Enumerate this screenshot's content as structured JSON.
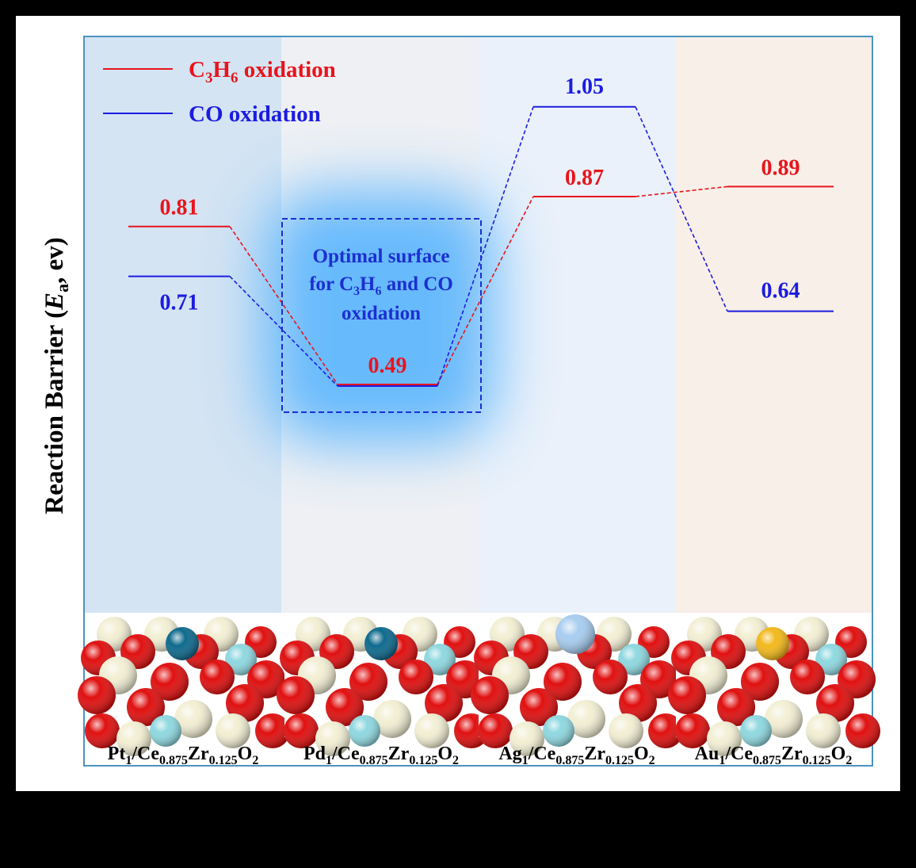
{
  "chart_data": {
    "type": "line",
    "ylabel_main": "Reaction Barrier (",
    "ylabel_sym": "E",
    "ylabel_sub": "a",
    "ylabel_tail": ", ev)",
    "categories": [
      {
        "base": "Pt",
        "metal_sub": "1",
        "rest": "/Ce",
        "s1": "0.875",
        "mid": "Zr",
        "s2": "0.125",
        "end": "O",
        "s3": "2"
      },
      {
        "base": "Pd",
        "metal_sub": "1",
        "rest": "/Ce",
        "s1": "0.875",
        "mid": "Zr",
        "s2": "0.125",
        "end": "O",
        "s3": "2"
      },
      {
        "base": "Ag",
        "metal_sub": "1",
        "rest": "/Ce",
        "s1": "0.875",
        "mid": "Zr",
        "s2": "0.125",
        "end": "O",
        "s3": "2"
      },
      {
        "base": "Au",
        "metal_sub": "1",
        "rest": "/Ce",
        "s1": "0.875",
        "mid": "Zr",
        "s2": "0.125",
        "end": "O",
        "s3": "2"
      }
    ],
    "series": [
      {
        "key": "c3h6",
        "color": "#e8141c",
        "legend_a": "C",
        "legend_s1": "3",
        "legend_b": "H",
        "legend_s2": "6",
        "legend_c": " oxidation",
        "values": [
          0.81,
          0.49,
          0.87,
          0.89
        ],
        "labels": [
          "0.81",
          "0.49",
          "0.87",
          "0.89"
        ]
      },
      {
        "key": "co",
        "color": "#1c1ce0",
        "legend_a": "CO oxidation",
        "values": [
          0.71,
          0.49,
          1.05,
          0.64
        ],
        "labels": [
          "0.71",
          "",
          "1.05",
          "0.64"
        ]
      }
    ],
    "ylim": [
      0.3,
      1.13
    ],
    "annotation": {
      "line1": "Optimal surface",
      "line2_a": "for C",
      "line2_s1": "3",
      "line2_b": "H",
      "line2_s2": "6",
      "line2_c": " and CO",
      "line3": "oxidation",
      "color": "#1c2fd0"
    },
    "panel_colors": [
      "#d4e4f3",
      "#eef0f4",
      "#eaf1fa",
      "#f8efe8"
    ],
    "atom_colors": {
      "O": "#e01010",
      "Ce": "#f2efd4",
      "Zr": "#8fd8e0",
      "Pt": "#0f6a8e",
      "Pd": "#0f6a8e",
      "Ag": "#a8cdf0",
      "Au": "#f2b81c"
    }
  }
}
